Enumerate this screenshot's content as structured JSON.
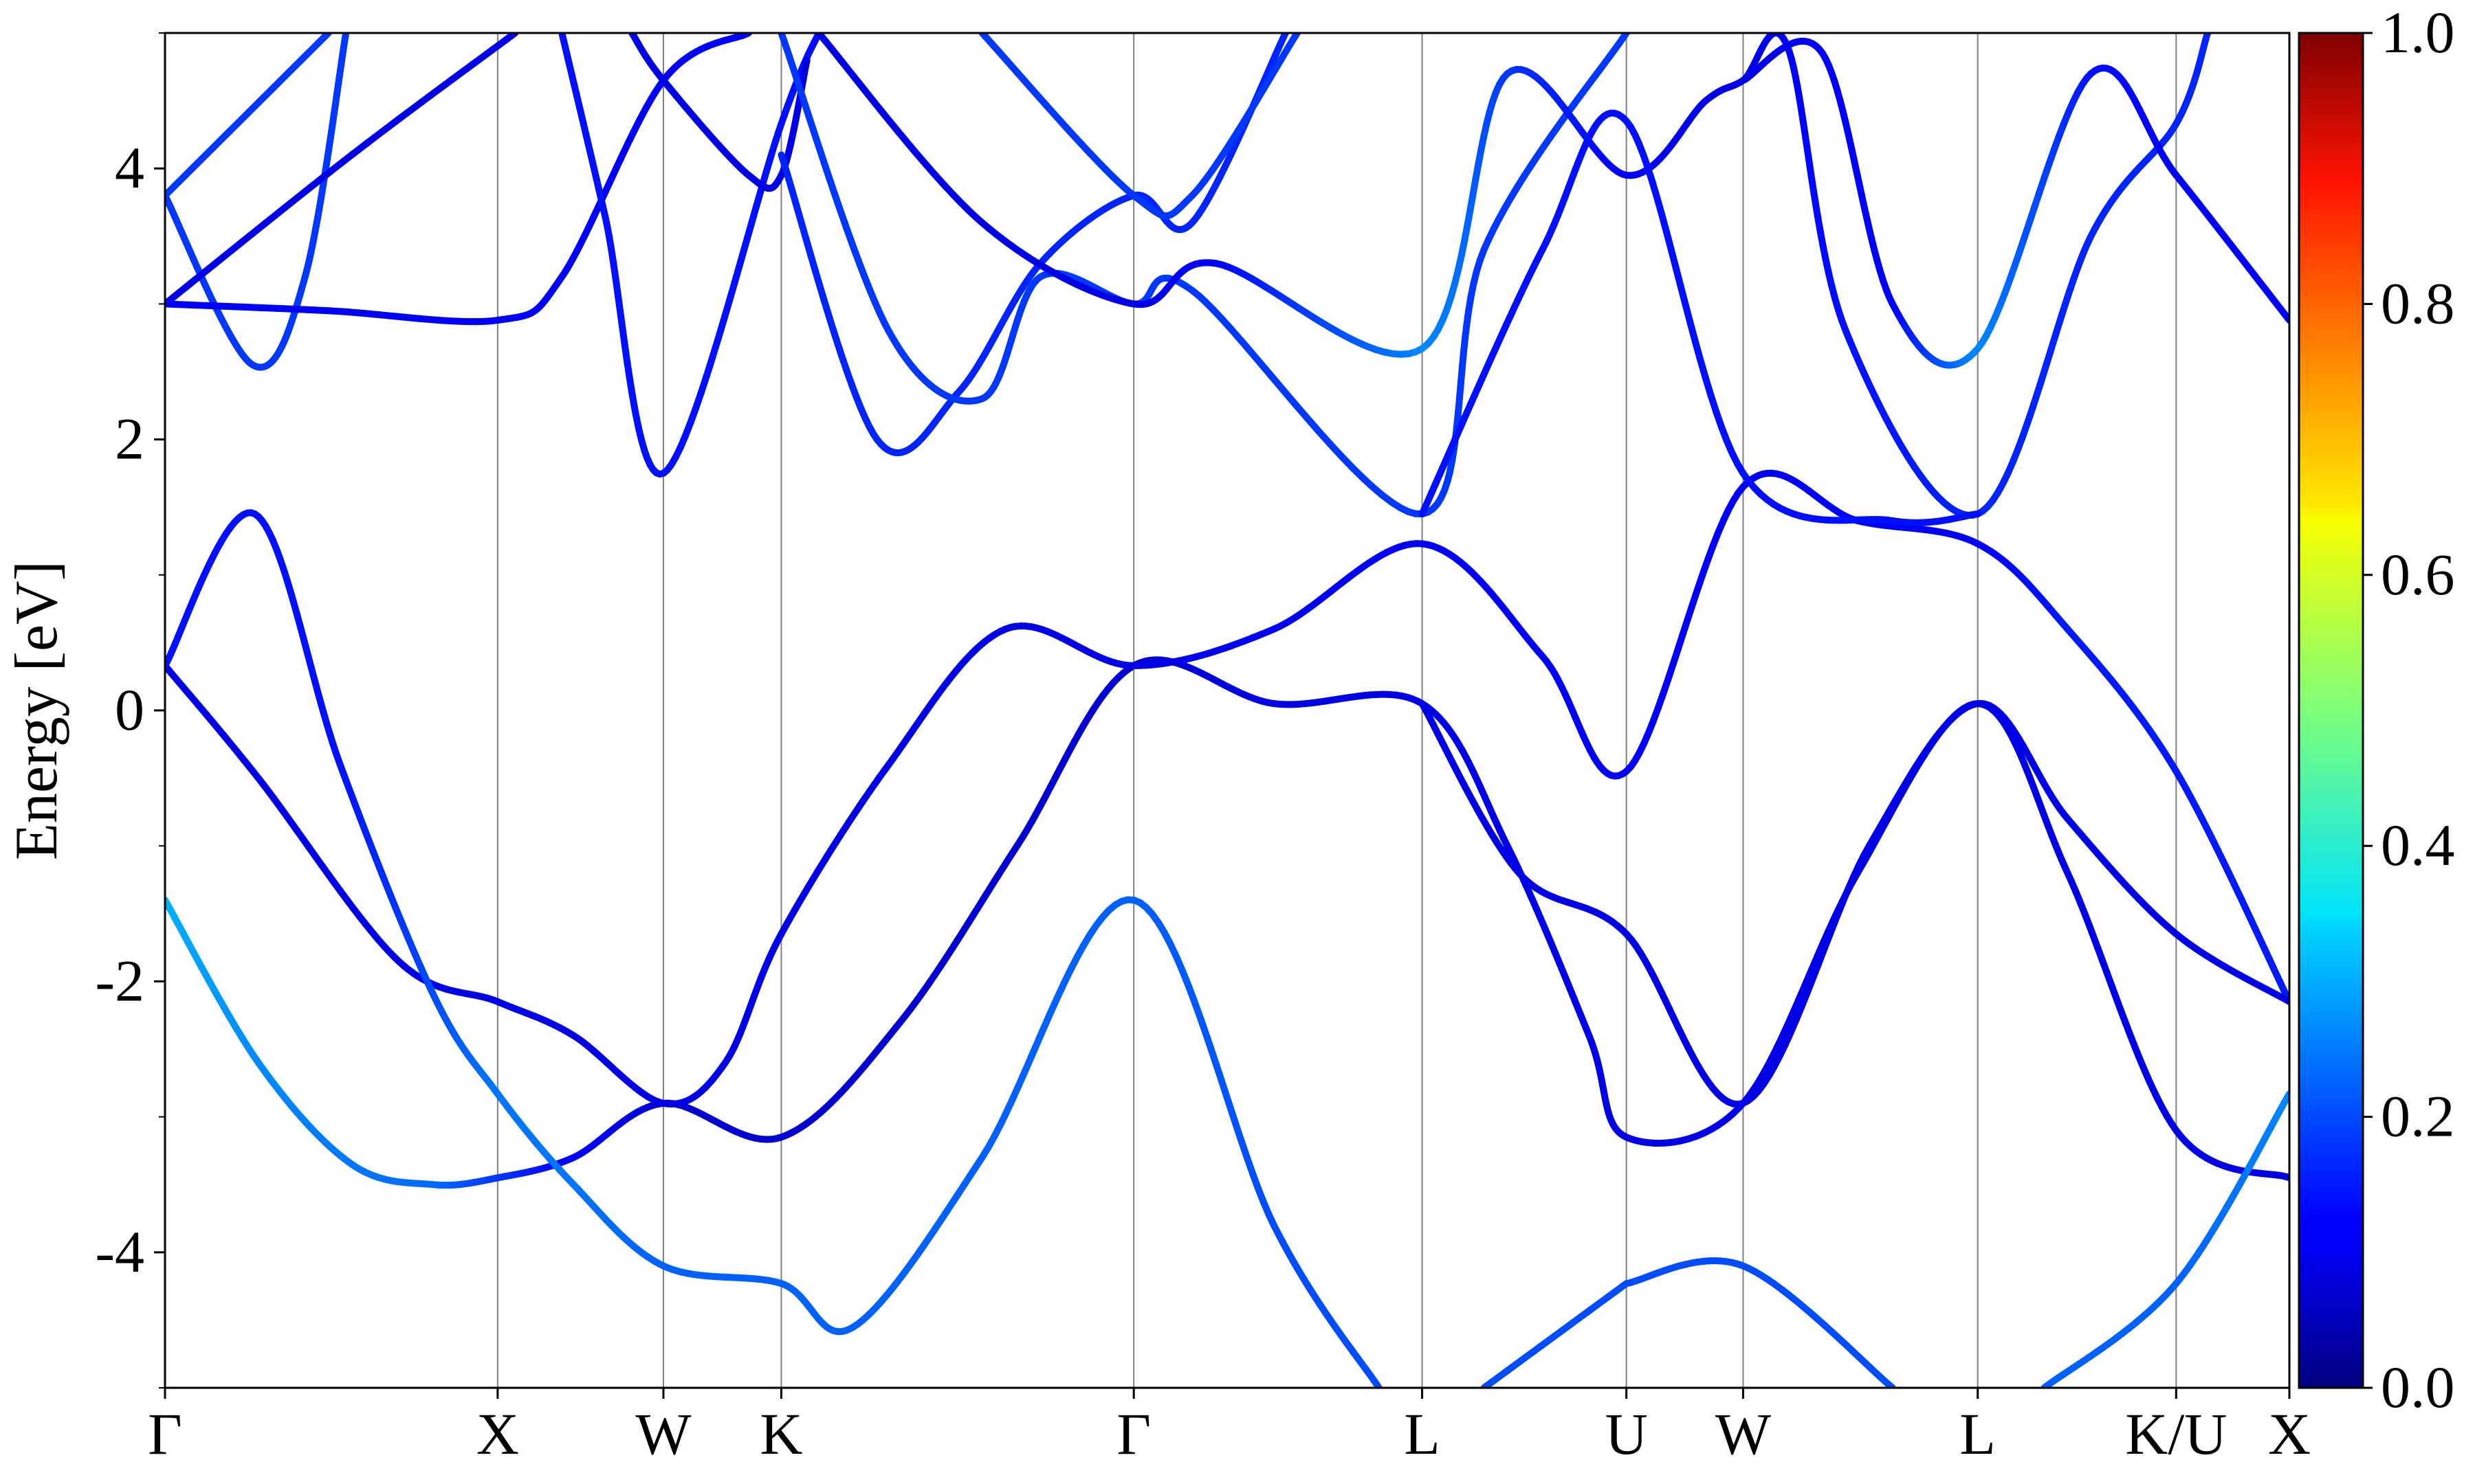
{
  "chart_data": {
    "type": "line",
    "ylabel": "Energy [eV]",
    "ylim": [
      -5,
      5
    ],
    "y_ticks": [
      {
        "value": 4,
        "label": "4"
      },
      {
        "value": 2,
        "label": "2"
      },
      {
        "value": 0,
        "label": "0"
      },
      {
        "value": -2,
        "label": "-2"
      },
      {
        "value": -4,
        "label": "-4"
      }
    ],
    "y_minor_ticks": [
      -5,
      -3,
      -1,
      1,
      3,
      5
    ],
    "xlim": [
      0,
      18.2
    ],
    "k_points": [
      {
        "label": "Γ",
        "x": 0
      },
      {
        "label": "X",
        "x": 2.85
      },
      {
        "label": "W",
        "x": 4.27
      },
      {
        "label": "K",
        "x": 5.28
      },
      {
        "label": "Γ",
        "x": 8.3
      },
      {
        "label": "L",
        "x": 10.77
      },
      {
        "label": "U",
        "x": 12.52
      },
      {
        "label": "W",
        "x": 13.52
      },
      {
        "label": "L",
        "x": 15.53
      },
      {
        "label": "K/U",
        "x": 17.23
      },
      {
        "label": "X",
        "x": 18.2
      }
    ],
    "colorbar": {
      "min": 0.0,
      "max": 1.0,
      "colormap": "jet",
      "ticks": [
        {
          "value": 0.0,
          "label": "0.0"
        },
        {
          "value": 0.2,
          "label": "0.2"
        },
        {
          "value": 0.4,
          "label": "0.4"
        },
        {
          "value": 0.6,
          "label": "0.6"
        },
        {
          "value": 0.8,
          "label": "0.8"
        },
        {
          "value": 1.0,
          "label": "1.0"
        }
      ]
    },
    "series": [
      {
        "points": [
          [
            0,
            -1.4,
            0.3
          ],
          [
            0.8,
            -2.6,
            0.26
          ],
          [
            1.6,
            -3.35,
            0.24
          ],
          [
            2.3,
            -3.5,
            0.23
          ],
          [
            2.85,
            -3.45,
            0.18
          ],
          [
            3.5,
            -3.3,
            0.12
          ],
          [
            4.27,
            -2.9,
            0.08
          ],
          [
            5.28,
            -3.15,
            0.08
          ],
          [
            6.3,
            -2.3,
            0.08
          ],
          [
            7.3,
            -1.0,
            0.08
          ],
          [
            8.3,
            0.33,
            0.08
          ],
          [
            9.5,
            0.05,
            0.1
          ],
          [
            10.77,
            0.05,
            0.1
          ],
          [
            11.5,
            -1.0,
            0.1
          ],
          [
            12.2,
            -2.4,
            0.1
          ],
          [
            12.52,
            -3.15,
            0.1
          ],
          [
            13.52,
            -2.9,
            0.1
          ],
          [
            14.5,
            -1.2,
            0.1
          ],
          [
            15.53,
            0.05,
            0.1
          ],
          [
            16.3,
            -1.2,
            0.1
          ],
          [
            17.23,
            -3.1,
            0.1
          ],
          [
            18.2,
            -3.45,
            0.1
          ]
        ]
      },
      {
        "points": [
          [
            0,
            0.33,
            0.1
          ],
          [
            0.8,
            -0.5,
            0.1
          ],
          [
            2.0,
            -1.85,
            0.1
          ],
          [
            2.85,
            -2.15,
            0.1
          ],
          [
            3.5,
            -2.4,
            0.1
          ],
          [
            4.27,
            -2.9,
            0.1
          ],
          [
            4.8,
            -2.6,
            0.1
          ],
          [
            5.28,
            -1.65,
            0.1
          ],
          [
            6.2,
            -0.4,
            0.1
          ],
          [
            7.2,
            0.6,
            0.1
          ],
          [
            8.3,
            0.33,
            0.1
          ],
          [
            9.5,
            0.6,
            0.12
          ],
          [
            10.77,
            1.23,
            0.12
          ],
          [
            11.8,
            0.4,
            0.12
          ],
          [
            12.52,
            -0.45,
            0.12
          ],
          [
            13.52,
            1.65,
            0.12
          ],
          [
            14.5,
            1.4,
            0.12
          ],
          [
            15.53,
            1.23,
            0.12
          ],
          [
            16.3,
            0.6,
            0.15
          ],
          [
            17.23,
            -0.45,
            0.15
          ],
          [
            18.2,
            -2.15,
            0.15
          ]
        ]
      },
      {
        "points": [
          [
            0,
            0.33,
            0.14
          ],
          [
            0.77,
            1.45,
            0.14
          ],
          [
            1.5,
            -0.4,
            0.14
          ],
          [
            2.3,
            -2.1,
            0.2
          ],
          [
            2.85,
            -2.83,
            0.24
          ],
          [
            3.5,
            -3.5,
            0.24
          ],
          [
            4.27,
            -4.1,
            0.22
          ],
          [
            5.28,
            -4.23,
            0.22
          ],
          [
            5.9,
            -4.55,
            0.22
          ],
          [
            7.0,
            -3.3,
            0.22
          ],
          [
            8.3,
            -1.4,
            0.22
          ],
          [
            9.5,
            -3.8,
            0.2
          ],
          [
            10.4,
            -5.0,
            0.2
          ]
        ]
      },
      {
        "points": [
          [
            0,
            3.8,
            0.18
          ],
          [
            1.4,
            5.0,
            0.18
          ]
        ]
      },
      {
        "points": [
          [
            0,
            3.8,
            0.18
          ],
          [
            0.75,
            2.55,
            0.18
          ],
          [
            1.2,
            3.2,
            0.18
          ],
          [
            1.55,
            5.0,
            0.18
          ]
        ]
      },
      {
        "points": [
          [
            0,
            3.0,
            0.1
          ],
          [
            1.6,
            4.1,
            0.1
          ],
          [
            3.0,
            5.0,
            0.1
          ]
        ]
      },
      {
        "points": [
          [
            0,
            3.0,
            0.12
          ],
          [
            1.4,
            2.95,
            0.12
          ],
          [
            2.85,
            2.88,
            0.12
          ],
          [
            3.4,
            3.2,
            0.12
          ],
          [
            4.27,
            4.65,
            0.12
          ],
          [
            5.0,
            5.0,
            0.12
          ]
        ]
      },
      {
        "points": [
          [
            3.4,
            5.0,
            0.14
          ],
          [
            3.77,
            3.65,
            0.14
          ],
          [
            4.27,
            1.75,
            0.14
          ],
          [
            5.28,
            4.33,
            0.14
          ],
          [
            5.6,
            5.0,
            0.14
          ]
        ]
      },
      {
        "points": [
          [
            4.0,
            5.0,
            0.1
          ],
          [
            4.27,
            4.65,
            0.1
          ],
          [
            5.0,
            3.95,
            0.1
          ],
          [
            5.28,
            3.95,
            0.1
          ],
          [
            5.5,
            4.8,
            0.1
          ]
        ]
      },
      {
        "points": [
          [
            5.28,
            4.1,
            0.16
          ],
          [
            6.1,
            2.0,
            0.16
          ],
          [
            6.8,
            2.35,
            0.16
          ],
          [
            7.5,
            3.3,
            0.16
          ],
          [
            8.3,
            3.8,
            0.16
          ],
          [
            8.8,
            3.6,
            0.16
          ],
          [
            9.6,
            5.0,
            0.16
          ]
        ]
      },
      {
        "points": [
          [
            5.28,
            5.0,
            0.18
          ],
          [
            6.2,
            2.8,
            0.18
          ],
          [
            7.0,
            2.3,
            0.18
          ],
          [
            7.5,
            3.2,
            0.18
          ],
          [
            8.3,
            3.0,
            0.18
          ],
          [
            8.8,
            3.1,
            0.18
          ],
          [
            10.77,
            1.45,
            0.18
          ],
          [
            11.3,
            3.4,
            0.18
          ],
          [
            12.52,
            5.0,
            0.18
          ]
        ]
      },
      {
        "points": [
          [
            5.6,
            5.0,
            0.1
          ],
          [
            7.0,
            3.6,
            0.1
          ],
          [
            8.3,
            3.0,
            0.1
          ],
          [
            9.0,
            3.3,
            0.12
          ],
          [
            10.77,
            2.67,
            0.26
          ],
          [
            11.5,
            4.7,
            0.18
          ],
          [
            12.52,
            3.95,
            0.12
          ],
          [
            13.2,
            4.5,
            0.1
          ],
          [
            13.52,
            4.65,
            0.1
          ],
          [
            13.9,
            4.9,
            0.12
          ],
          [
            14.4,
            2.8,
            0.14
          ],
          [
            15.53,
            1.45,
            0.16
          ],
          [
            16.5,
            3.5,
            0.16
          ],
          [
            17.23,
            4.33,
            0.16
          ],
          [
            17.5,
            5.0,
            0.16
          ]
        ]
      },
      {
        "points": [
          [
            7.0,
            5.0,
            0.18
          ],
          [
            8.3,
            3.8,
            0.18
          ],
          [
            8.8,
            3.8,
            0.18
          ],
          [
            9.7,
            5.0,
            0.18
          ]
        ]
      },
      {
        "points": [
          [
            10.77,
            1.45,
            0.14
          ],
          [
            11.8,
            3.4,
            0.14
          ],
          [
            12.52,
            4.35,
            0.14
          ],
          [
            13.52,
            1.75,
            0.14
          ],
          [
            14.8,
            1.4,
            0.14
          ],
          [
            15.53,
            1.45,
            0.14
          ]
        ]
      },
      {
        "points": [
          [
            12.52,
            -4.23,
            0.2
          ],
          [
            13.52,
            -4.1,
            0.2
          ],
          [
            14.8,
            -5.0,
            0.2
          ]
        ]
      },
      {
        "points": [
          [
            11.3,
            -5.0,
            0.2
          ],
          [
            12.52,
            -4.23,
            0.2
          ]
        ]
      },
      {
        "points": [
          [
            16.1,
            -5.0,
            0.22
          ],
          [
            17.23,
            -4.23,
            0.22
          ],
          [
            18.2,
            -2.83,
            0.26
          ]
        ]
      },
      {
        "points": [
          [
            10.77,
            0.05,
            0.1
          ],
          [
            11.6,
            -1.2,
            0.1
          ],
          [
            12.52,
            -1.65,
            0.1
          ],
          [
            13.52,
            -2.9,
            0.1
          ],
          [
            14.6,
            -1.0,
            0.1
          ],
          [
            15.53,
            0.05,
            0.1
          ],
          [
            16.3,
            -0.8,
            0.1
          ],
          [
            17.23,
            -1.65,
            0.1
          ],
          [
            18.2,
            -2.15,
            0.1
          ]
        ]
      },
      {
        "points": [
          [
            13.52,
            4.65,
            0.1
          ],
          [
            14.2,
            4.85,
            0.12
          ],
          [
            14.8,
            3.0,
            0.12
          ],
          [
            15.53,
            2.67,
            0.26
          ],
          [
            16.5,
            4.7,
            0.14
          ],
          [
            17.23,
            3.95,
            0.12
          ],
          [
            18.2,
            2.88,
            0.12
          ]
        ]
      }
    ]
  }
}
